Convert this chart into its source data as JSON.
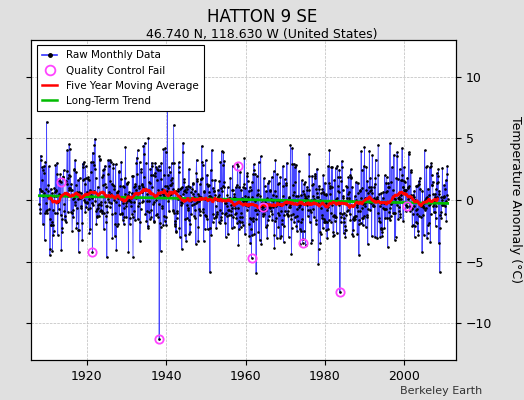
{
  "title": "HATTON 9 SE",
  "subtitle": "46.740 N, 118.630 W (United States)",
  "ylabel": "Temperature Anomaly (°C)",
  "attribution": "Berkeley Earth",
  "year_start": 1908,
  "year_end": 2011,
  "ylim": [
    -13,
    13
  ],
  "yticks": [
    -10,
    -5,
    0,
    5,
    10
  ],
  "xticks": [
    1920,
    1940,
    1960,
    1980,
    2000
  ],
  "xlim": [
    1906,
    2013
  ],
  "raw_color": "#3333FF",
  "mavg_color": "#FF0000",
  "trend_color": "#00BB00",
  "qc_color": "#FF44FF",
  "background_color": "#E0E0E0",
  "plot_bg_color": "#FFFFFF",
  "seed": 12345,
  "n_months": 1248,
  "qc_years": [
    1913.5,
    1921.5,
    1938.5,
    1958.5,
    1962.0,
    1965.0,
    1975.0,
    1984.5,
    2001.5
  ],
  "qc_values": [
    1.5,
    -4.2,
    -11.3,
    2.8,
    -4.7,
    -0.6,
    -3.5,
    -7.5,
    -0.5
  ]
}
